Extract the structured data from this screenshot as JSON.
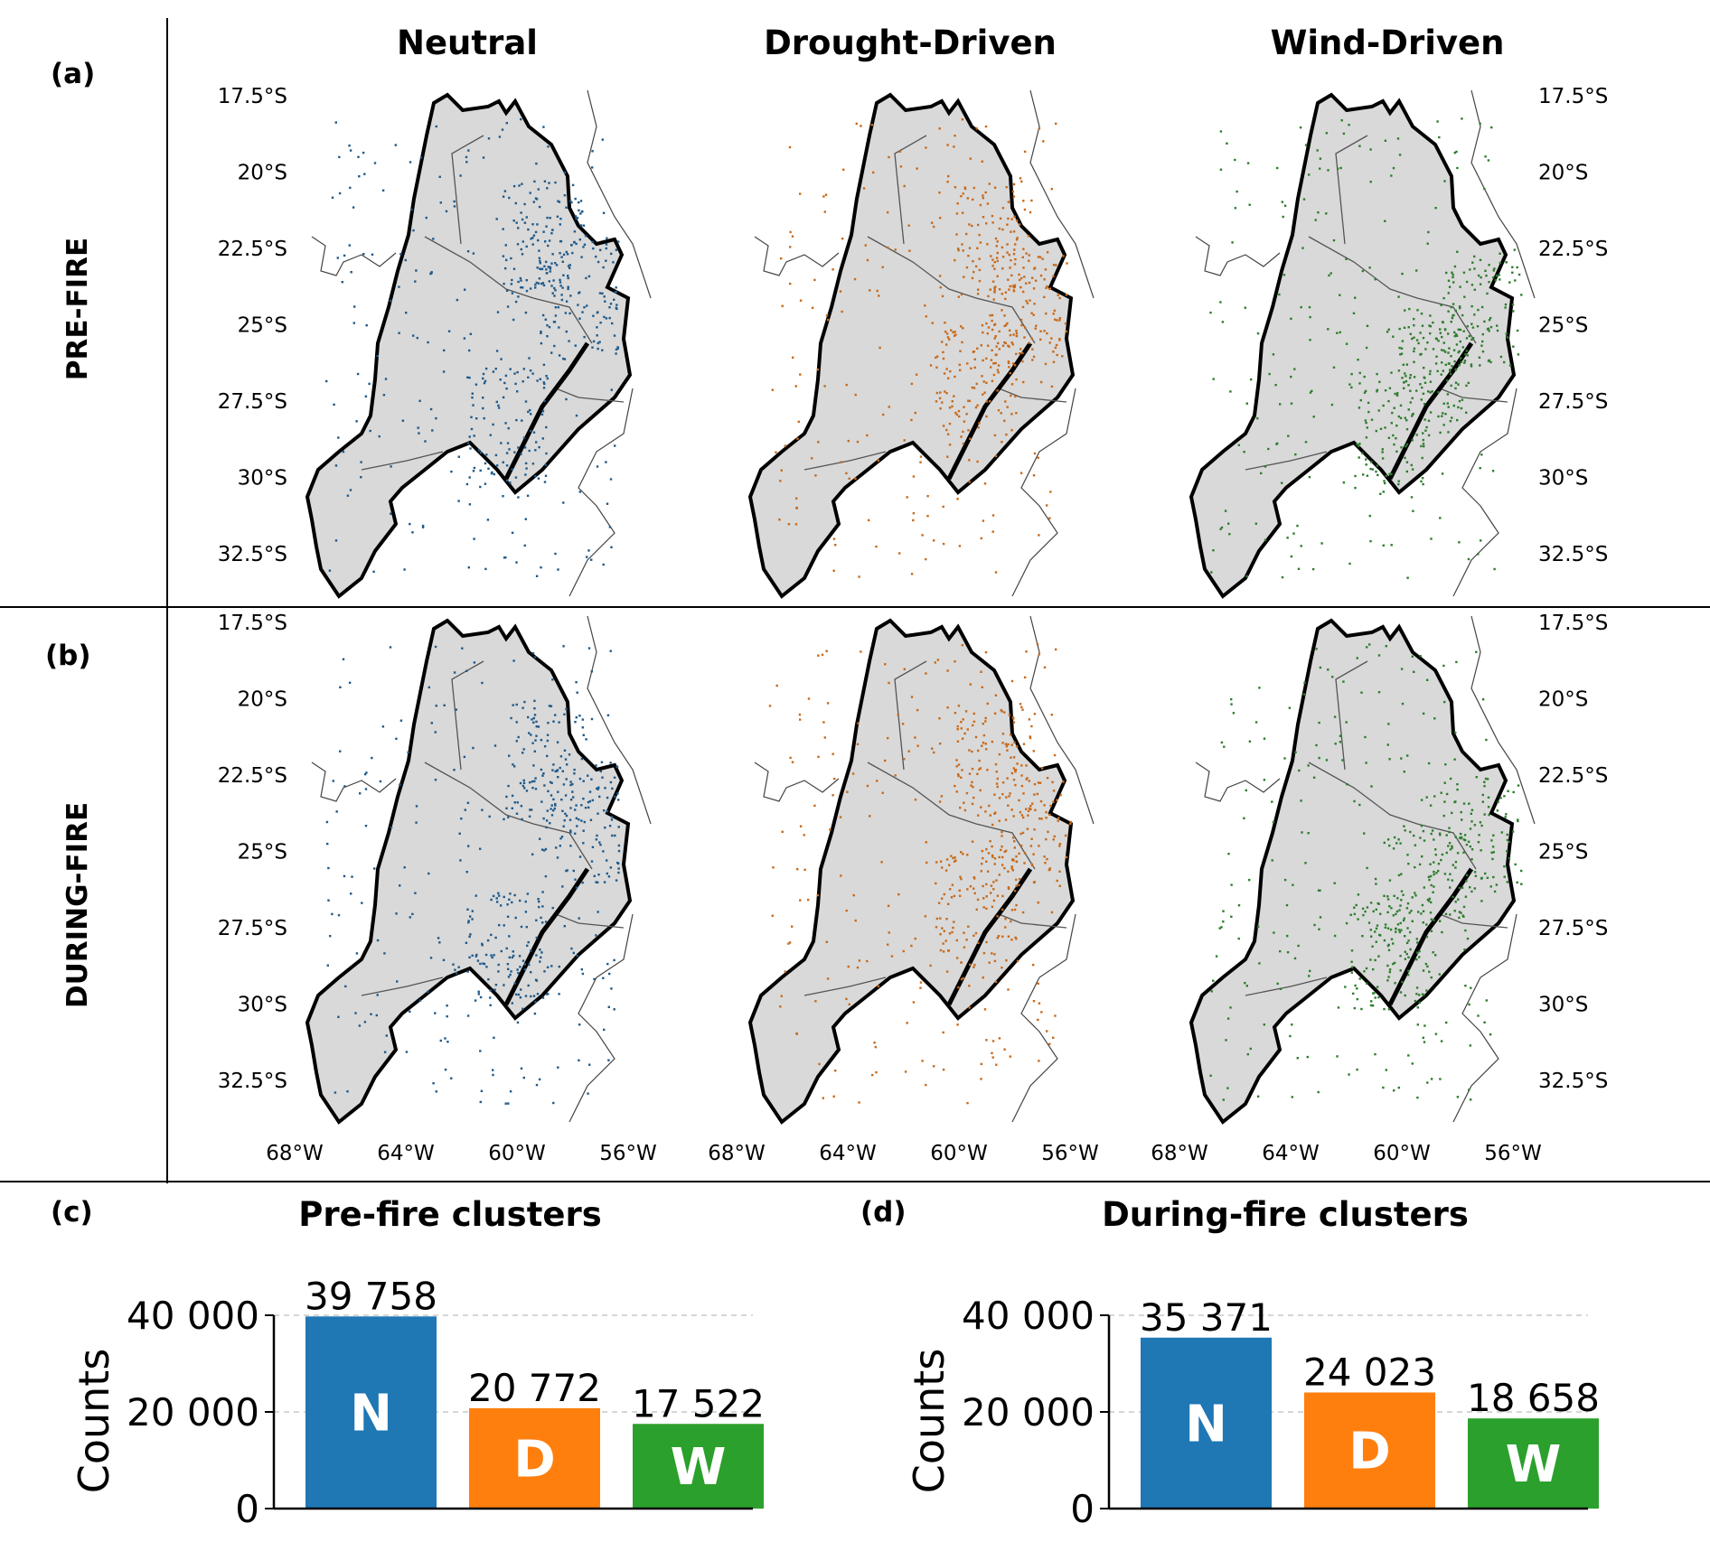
{
  "column_headers": [
    "Neutral",
    "Drought-Driven",
    "Wind-Driven"
  ],
  "row_labels": [
    "PRE-FIRE",
    "DURING-FIRE"
  ],
  "panel_labels": [
    "(a)",
    "(b)",
    "(c)",
    "(d)"
  ],
  "lat_ticks": [
    "17.5°S",
    "20°S",
    "22.5°S",
    "25°S",
    "27.5°S",
    "30°S",
    "32.5°S"
  ],
  "lon_ticks": [
    "68°W",
    "64°W",
    "60°W",
    "56°W"
  ],
  "map_colors": {
    "Neutral": "#1f5a8a",
    "Drought-Driven": "#c76a1c",
    "Wind-Driven": "#2e7d2e",
    "land": "#d9d9d9"
  },
  "chart_data": [
    {
      "type": "bar",
      "title": "Pre-fire clusters",
      "ylabel": "Counts",
      "categories": [
        "N",
        "D",
        "W"
      ],
      "values": [
        39758,
        20772,
        17522
      ],
      "value_labels": [
        "39 758",
        "20 772",
        "17 522"
      ],
      "colors": [
        "#1f77b4",
        "#ff7f0e",
        "#2ca02c"
      ],
      "ylim": [
        0,
        40000
      ],
      "yticks": [
        0,
        20000,
        40000
      ],
      "ytick_labels": [
        "0",
        "20 000",
        "40 000"
      ],
      "grid": true
    },
    {
      "type": "bar",
      "title": "During-fire clusters",
      "ylabel": "Counts",
      "categories": [
        "N",
        "D",
        "W"
      ],
      "values": [
        35371,
        24023,
        18658
      ],
      "value_labels": [
        "35 371",
        "24 023",
        "18 658"
      ],
      "colors": [
        "#1f77b4",
        "#ff7f0e",
        "#2ca02c"
      ],
      "ylim": [
        0,
        40000
      ],
      "yticks": [
        0,
        20000,
        40000
      ],
      "ytick_labels": [
        "0",
        "20 000",
        "40 000"
      ],
      "grid": true
    }
  ]
}
